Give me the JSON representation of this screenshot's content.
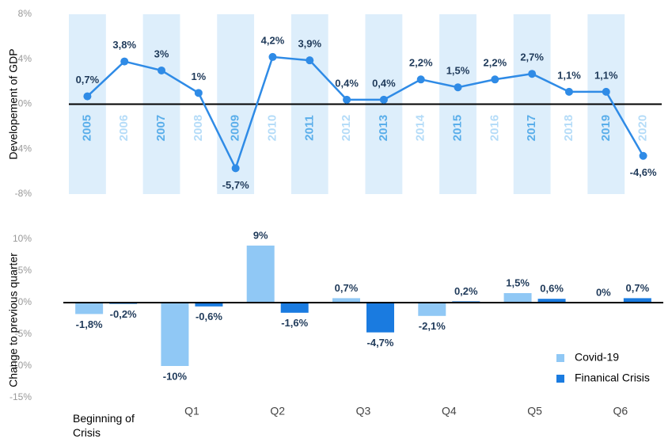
{
  "chart_data": [
    {
      "type": "line",
      "y_label": "Developement of GDP",
      "categories": [
        "2005",
        "2006",
        "2007",
        "2008",
        "2009",
        "2010",
        "2011",
        "2012",
        "2013",
        "2014",
        "2015",
        "2016",
        "2017",
        "2018",
        "2019",
        "2020"
      ],
      "values": [
        0.7,
        3.8,
        3,
        1,
        -5.7,
        4.2,
        3.9,
        0.4,
        0.4,
        2.2,
        1.5,
        2.2,
        2.7,
        1.1,
        1.1,
        -4.6
      ],
      "value_labels": [
        "0,7%",
        "3,8%",
        "3%",
        "1%",
        "-5,7%",
        "4,2%",
        "3,9%",
        "0,4%",
        "0,4%",
        "2,2%",
        "1,5%",
        "2,2%",
        "2,7%",
        "1,1%",
        "1,1%",
        "-4,6%"
      ],
      "color": "#2f8be6",
      "ylim": [
        -8,
        8
      ],
      "yticks": [
        {
          "value": 8,
          "label": "8%"
        },
        {
          "value": 4,
          "label": "4%"
        },
        {
          "value": 0,
          "label": "0%"
        },
        {
          "value": -4,
          "label": "-4%"
        },
        {
          "value": -8,
          "label": "-8%"
        }
      ]
    },
    {
      "type": "bar",
      "y_label": "Change to previous quarter",
      "categories": [
        "Beginning of Crisis",
        "Q1",
        "Q2",
        "Q3",
        "Q4",
        "Q5",
        "Q6"
      ],
      "series": [
        {
          "name": "Covid-19",
          "color": "#90c8f5",
          "values": [
            -1.8,
            -10,
            9,
            0.7,
            -2.1,
            1.5,
            0
          ],
          "value_labels": [
            "-1,8%",
            "-10%",
            "9%",
            "0,7%",
            "-2,1%",
            "1,5%",
            "0%"
          ]
        },
        {
          "name": "Finanical Crisis",
          "color": "#1a7be0",
          "values": [
            -0.2,
            -0.6,
            -1.6,
            -4.7,
            0.2,
            0.6,
            0.7
          ],
          "value_labels": [
            "-0,2%",
            "-0,6%",
            "-1,6%",
            "-4,7%",
            "0,2%",
            "0,6%",
            "0,7%"
          ]
        }
      ],
      "ylim": [
        -15,
        12
      ],
      "yticks": [
        {
          "value": 10,
          "label": "10%"
        },
        {
          "value": 5,
          "label": "5%"
        },
        {
          "value": 0,
          "label": "0%"
        },
        {
          "value": -5,
          "label": "-5%"
        },
        {
          "value": -10,
          "label": "-10%"
        },
        {
          "value": -15,
          "label": "-15%"
        }
      ]
    }
  ]
}
